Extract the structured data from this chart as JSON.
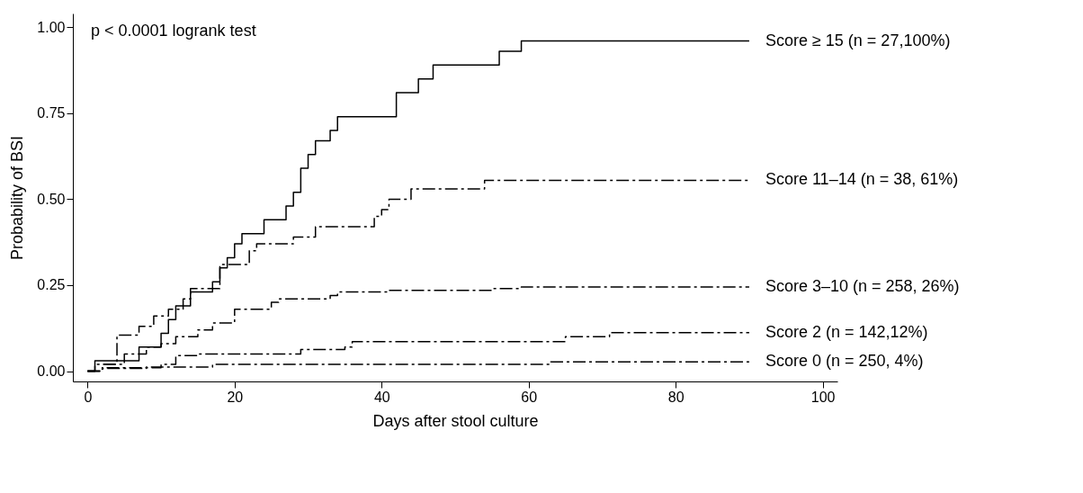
{
  "chart_data": {
    "type": "step",
    "xlabel": "Days after stool culture",
    "ylabel": "Probability of BSI",
    "annotations": [
      "p < 0.0001 logrank test"
    ],
    "xlim": [
      -2,
      102
    ],
    "xticks": [
      0,
      20,
      40,
      60,
      80,
      100
    ],
    "ylim": [
      -0.03,
      1.04
    ],
    "yticks": [
      {
        "value": 0,
        "label": "0.00"
      },
      {
        "value": 0.25,
        "label": "0.25"
      },
      {
        "value": 0.5,
        "label": "0.50"
      },
      {
        "value": 0.75,
        "label": "0.75"
      },
      {
        "value": 1,
        "label": "1.00"
      }
    ],
    "grid": false,
    "marker": "none",
    "series": [
      {
        "name": "Score ≥ 15 (n = 27,100%)",
        "color": "#000000",
        "line_style": "solid",
        "x": [
          0,
          1,
          7,
          10,
          11,
          12,
          14,
          17,
          18,
          19,
          20,
          21,
          24,
          27,
          28,
          29,
          30,
          31,
          33,
          34,
          42,
          45,
          47,
          56,
          59,
          90
        ],
        "values": [
          0,
          0.03,
          0.07,
          0.11,
          0.15,
          0.19,
          0.23,
          0.26,
          0.3,
          0.33,
          0.37,
          0.4,
          0.44,
          0.48,
          0.52,
          0.59,
          0.63,
          0.67,
          0.7,
          0.74,
          0.81,
          0.85,
          0.89,
          0.93,
          0.96,
          0.96
        ]
      },
      {
        "name": "Score 11–14 (n = 38, 61%)",
        "color": "#000000",
        "line_style": "dashed",
        "x": [
          0,
          1,
          4,
          7,
          9,
          11,
          13,
          14,
          18,
          22,
          23,
          28,
          31,
          39,
          40,
          41,
          44,
          54,
          90
        ],
        "values": [
          0,
          0.02,
          0.105,
          0.13,
          0.16,
          0.18,
          0.21,
          0.24,
          0.31,
          0.35,
          0.37,
          0.39,
          0.42,
          0.45,
          0.47,
          0.5,
          0.53,
          0.555,
          0.555
        ]
      },
      {
        "name": "Score 3–10 (n = 258, 26%)",
        "color": "#000000",
        "line_style": "dashed",
        "x": [
          0,
          2,
          5,
          8,
          10,
          12,
          15,
          17,
          20,
          25,
          26,
          33,
          34,
          41,
          55,
          59,
          90
        ],
        "values": [
          0,
          0.02,
          0.05,
          0.07,
          0.08,
          0.1,
          0.12,
          0.14,
          0.18,
          0.2,
          0.21,
          0.22,
          0.23,
          0.235,
          0.24,
          0.245,
          0.245
        ]
      },
      {
        "name": "Score 2 (n = 142,12%)",
        "color": "#000000",
        "line_style": "dashed",
        "x": [
          0,
          2,
          10,
          12,
          15,
          29,
          35,
          36,
          65,
          71,
          90
        ],
        "values": [
          0,
          0.01,
          0.02,
          0.045,
          0.05,
          0.063,
          0.07,
          0.086,
          0.1,
          0.112,
          0.112
        ]
      },
      {
        "name": "Score 0 (n = 250, 4%)",
        "color": "#000000",
        "line_style": "dashed",
        "x": [
          0,
          2,
          8,
          17,
          63,
          90
        ],
        "values": [
          0,
          0.008,
          0.012,
          0.02,
          0.027,
          0.027
        ]
      }
    ]
  }
}
